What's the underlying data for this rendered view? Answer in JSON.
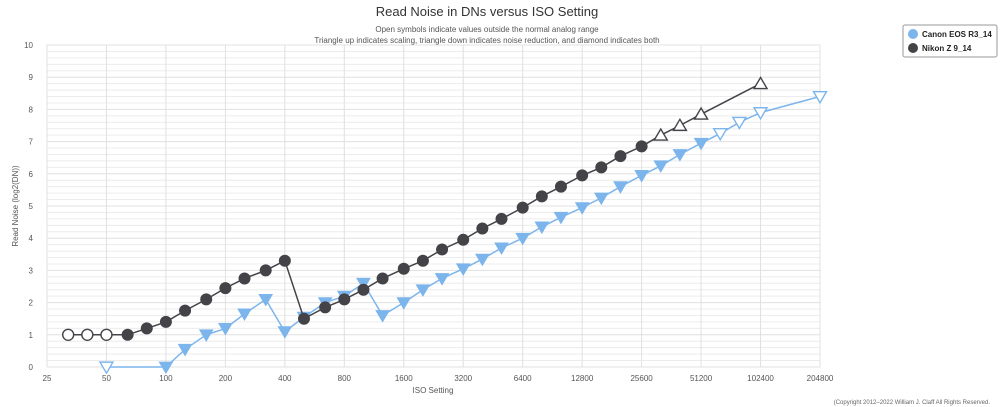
{
  "chart_data": {
    "type": "line",
    "title": "Read Noise in DNs versus ISO Setting",
    "subtitle_lines": [
      "Open symbols indicate values outside the normal analog range",
      "Triangle up indicates scaling, triangle down indicates noise reduction, and diamond indicates both"
    ],
    "xlabel": "ISO Setting",
    "ylabel": "Read Noise (log2(DN))",
    "x_scale": "log2",
    "xlim": [
      25,
      204800
    ],
    "ylim": [
      0,
      10
    ],
    "x_ticks": [
      25,
      50,
      100,
      200,
      400,
      800,
      1600,
      3200,
      6400,
      12800,
      25600,
      51200,
      102400,
      204800
    ],
    "y_ticks": [
      0,
      1,
      2,
      3,
      4,
      5,
      6,
      7,
      8,
      9,
      10
    ],
    "grid": true,
    "legend_position": "top-right",
    "copyright": "(Copyright 2012–2022 William J. Claff All Rights Reserved.",
    "series": [
      {
        "name": "Canon EOS R3_14",
        "color": "#7cb5ec",
        "points": [
          {
            "x": 50,
            "y": 0.0,
            "symbol": "triangle-down",
            "open": true
          },
          {
            "x": 100,
            "y": 0.0,
            "symbol": "triangle-down",
            "open": false
          },
          {
            "x": 125,
            "y": 0.55,
            "symbol": "triangle-down",
            "open": false
          },
          {
            "x": 160,
            "y": 1.0,
            "symbol": "triangle-down",
            "open": false
          },
          {
            "x": 200,
            "y": 1.2,
            "symbol": "triangle-down",
            "open": false
          },
          {
            "x": 250,
            "y": 1.65,
            "symbol": "triangle-down",
            "open": false
          },
          {
            "x": 320,
            "y": 2.1,
            "symbol": "triangle-down",
            "open": false
          },
          {
            "x": 400,
            "y": 1.1,
            "symbol": "triangle-down",
            "open": false
          },
          {
            "x": 500,
            "y": 1.55,
            "symbol": "triangle-down",
            "open": false
          },
          {
            "x": 640,
            "y": 2.0,
            "symbol": "triangle-down",
            "open": false
          },
          {
            "x": 800,
            "y": 2.2,
            "symbol": "triangle-down",
            "open": false
          },
          {
            "x": 1000,
            "y": 2.6,
            "symbol": "triangle-down",
            "open": false
          },
          {
            "x": 1250,
            "y": 1.6,
            "symbol": "triangle-down",
            "open": false
          },
          {
            "x": 1600,
            "y": 2.0,
            "symbol": "triangle-down",
            "open": false
          },
          {
            "x": 2000,
            "y": 2.4,
            "symbol": "triangle-down",
            "open": false
          },
          {
            "x": 2500,
            "y": 2.75,
            "symbol": "triangle-down",
            "open": false
          },
          {
            "x": 3200,
            "y": 3.05,
            "symbol": "triangle-down",
            "open": false
          },
          {
            "x": 4000,
            "y": 3.35,
            "symbol": "triangle-down",
            "open": false
          },
          {
            "x": 5000,
            "y": 3.7,
            "symbol": "triangle-down",
            "open": false
          },
          {
            "x": 6400,
            "y": 4.0,
            "symbol": "triangle-down",
            "open": false
          },
          {
            "x": 8000,
            "y": 4.35,
            "symbol": "triangle-down",
            "open": false
          },
          {
            "x": 10000,
            "y": 4.65,
            "symbol": "triangle-down",
            "open": false
          },
          {
            "x": 12800,
            "y": 4.95,
            "symbol": "triangle-down",
            "open": false
          },
          {
            "x": 16000,
            "y": 5.25,
            "symbol": "triangle-down",
            "open": false
          },
          {
            "x": 20000,
            "y": 5.6,
            "symbol": "triangle-down",
            "open": false
          },
          {
            "x": 25600,
            "y": 5.95,
            "symbol": "triangle-down",
            "open": false
          },
          {
            "x": 32000,
            "y": 6.25,
            "symbol": "triangle-down",
            "open": false
          },
          {
            "x": 40000,
            "y": 6.6,
            "symbol": "triangle-down",
            "open": false
          },
          {
            "x": 51200,
            "y": 6.95,
            "symbol": "triangle-down",
            "open": false
          },
          {
            "x": 64000,
            "y": 7.25,
            "symbol": "triangle-down",
            "open": true
          },
          {
            "x": 80000,
            "y": 7.6,
            "symbol": "triangle-down",
            "open": true
          },
          {
            "x": 102400,
            "y": 7.9,
            "symbol": "triangle-down",
            "open": true
          },
          {
            "x": 204800,
            "y": 8.4,
            "symbol": "triangle-down",
            "open": true
          }
        ]
      },
      {
        "name": "Nikon Z 9_14",
        "color": "#434348",
        "points": [
          {
            "x": 32,
            "y": 1.0,
            "symbol": "circle",
            "open": true
          },
          {
            "x": 40,
            "y": 1.0,
            "symbol": "circle",
            "open": true
          },
          {
            "x": 50,
            "y": 1.0,
            "symbol": "circle",
            "open": true
          },
          {
            "x": 64,
            "y": 1.0,
            "symbol": "circle",
            "open": false
          },
          {
            "x": 80,
            "y": 1.2,
            "symbol": "circle",
            "open": false
          },
          {
            "x": 100,
            "y": 1.4,
            "symbol": "circle",
            "open": false
          },
          {
            "x": 125,
            "y": 1.75,
            "symbol": "circle",
            "open": false
          },
          {
            "x": 160,
            "y": 2.1,
            "symbol": "circle",
            "open": false
          },
          {
            "x": 200,
            "y": 2.45,
            "symbol": "circle",
            "open": false
          },
          {
            "x": 250,
            "y": 2.75,
            "symbol": "circle",
            "open": false
          },
          {
            "x": 320,
            "y": 3.0,
            "symbol": "circle",
            "open": false
          },
          {
            "x": 400,
            "y": 3.3,
            "symbol": "circle",
            "open": false
          },
          {
            "x": 500,
            "y": 1.5,
            "symbol": "circle",
            "open": false
          },
          {
            "x": 640,
            "y": 1.85,
            "symbol": "circle",
            "open": false
          },
          {
            "x": 800,
            "y": 2.1,
            "symbol": "circle",
            "open": false
          },
          {
            "x": 1000,
            "y": 2.4,
            "symbol": "circle",
            "open": false
          },
          {
            "x": 1250,
            "y": 2.75,
            "symbol": "circle",
            "open": false
          },
          {
            "x": 1600,
            "y": 3.05,
            "symbol": "circle",
            "open": false
          },
          {
            "x": 2000,
            "y": 3.3,
            "symbol": "circle",
            "open": false
          },
          {
            "x": 2500,
            "y": 3.65,
            "symbol": "circle",
            "open": false
          },
          {
            "x": 3200,
            "y": 3.95,
            "symbol": "circle",
            "open": false
          },
          {
            "x": 4000,
            "y": 4.3,
            "symbol": "circle",
            "open": false
          },
          {
            "x": 5000,
            "y": 4.6,
            "symbol": "circle",
            "open": false
          },
          {
            "x": 6400,
            "y": 4.95,
            "symbol": "circle",
            "open": false
          },
          {
            "x": 8000,
            "y": 5.3,
            "symbol": "circle",
            "open": false
          },
          {
            "x": 10000,
            "y": 5.6,
            "symbol": "circle",
            "open": false
          },
          {
            "x": 12800,
            "y": 5.95,
            "symbol": "circle",
            "open": false
          },
          {
            "x": 16000,
            "y": 6.2,
            "symbol": "circle",
            "open": false
          },
          {
            "x": 20000,
            "y": 6.55,
            "symbol": "circle",
            "open": false
          },
          {
            "x": 25600,
            "y": 6.85,
            "symbol": "circle",
            "open": false
          },
          {
            "x": 32000,
            "y": 7.2,
            "symbol": "triangle-up",
            "open": true
          },
          {
            "x": 40000,
            "y": 7.5,
            "symbol": "triangle-up",
            "open": true
          },
          {
            "x": 51200,
            "y": 7.85,
            "symbol": "triangle-up",
            "open": true
          },
          {
            "x": 102400,
            "y": 8.8,
            "symbol": "triangle-up",
            "open": true
          }
        ]
      }
    ]
  }
}
